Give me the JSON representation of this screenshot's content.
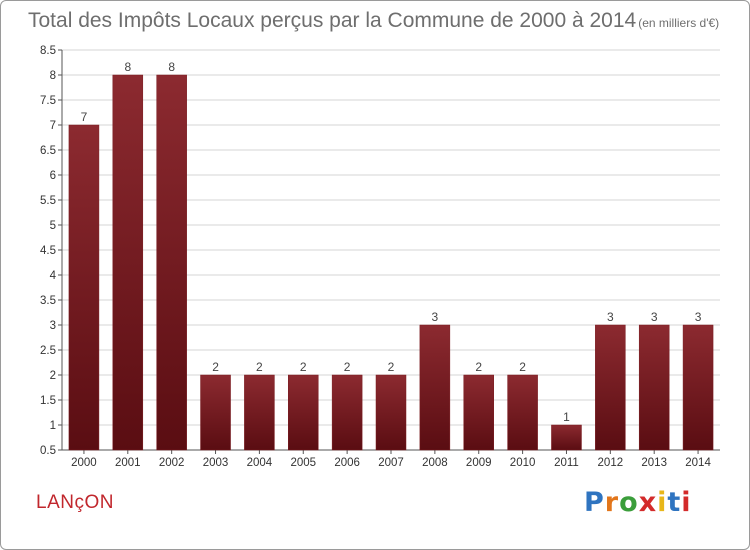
{
  "chart_data": {
    "type": "bar",
    "title": "Total des Impôts Locaux perçus par la Commune de 2000 à 2014",
    "unit": "(en milliers d'€)",
    "categories": [
      "2000",
      "2001",
      "2002",
      "2003",
      "2004",
      "2005",
      "2006",
      "2007",
      "2008",
      "2009",
      "2010",
      "2011",
      "2012",
      "2013",
      "2014"
    ],
    "values": [
      7,
      8,
      8,
      2,
      2,
      2,
      2,
      2,
      3,
      2,
      2,
      1,
      3,
      3,
      3
    ],
    "value_labels": [
      "7",
      "8",
      "8",
      "2",
      "2",
      "2",
      "2",
      "2",
      "3",
      "2",
      "2",
      "1",
      "3",
      "3",
      "3"
    ],
    "ylim": [
      0.5,
      8.5
    ],
    "yticks": [
      0.5,
      1,
      1.5,
      2,
      2.5,
      3,
      3.5,
      4,
      4.5,
      5,
      5.5,
      6,
      6.5,
      7,
      7.5,
      8,
      8.5
    ],
    "ytick_labels": [
      "0.5",
      "1",
      "1.5",
      "2",
      "2.5",
      "3",
      "3.5",
      "4",
      "4.5",
      "5",
      "5.5",
      "6",
      "6.5",
      "7",
      "7.5",
      "8",
      "8.5"
    ],
    "xlabel": "",
    "ylabel": "",
    "bar_color": "#7a1a1f"
  },
  "commune": "LANçON",
  "logo": {
    "letters": [
      "P",
      "r",
      "o",
      "x",
      "i",
      "t",
      "i"
    ],
    "colors": [
      "#2f74c0",
      "#e2761b",
      "#3b9e3b",
      "#d32b2b",
      "#e8b71a",
      "#2f74c0",
      "#d32b2b"
    ]
  }
}
